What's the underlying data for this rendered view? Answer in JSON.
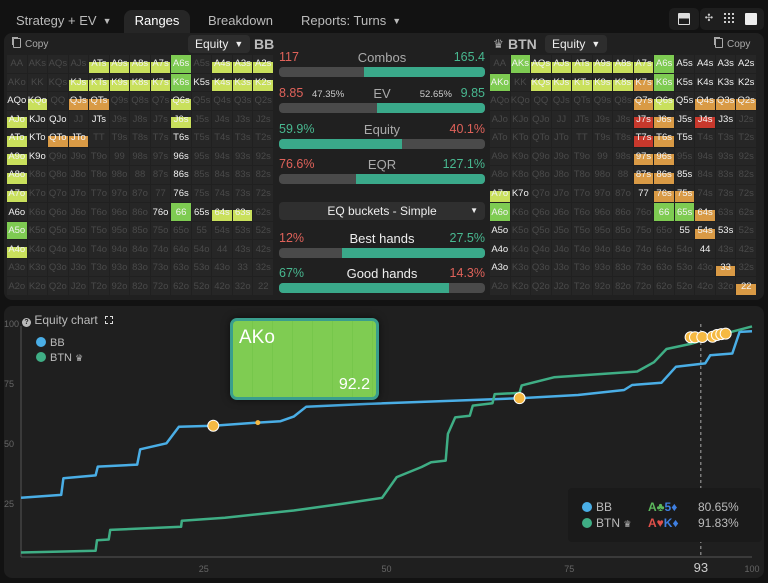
{
  "tabs": [
    {
      "label": "Strategy + EV",
      "dropdown": true,
      "active": false
    },
    {
      "label": "Ranges",
      "active": true
    },
    {
      "label": "Breakdown",
      "active": false
    },
    {
      "label": "Reports: Turns",
      "dropdown": true,
      "active": false
    }
  ],
  "toolbar_icons": [
    "layout-split-icon",
    "compact-icon",
    "grid-icon",
    "square-icon"
  ],
  "hands": [
    [
      "AA",
      "AKs",
      "AQs",
      "AJs",
      "ATs",
      "A9s",
      "A8s",
      "A7s",
      "A6s",
      "A5s",
      "A4s",
      "A3s",
      "A2s"
    ],
    [
      "AKo",
      "KK",
      "KQs",
      "KJs",
      "KTs",
      "K9s",
      "K8s",
      "K7s",
      "K6s",
      "K5s",
      "K4s",
      "K3s",
      "K2s"
    ],
    [
      "AQo",
      "KQo",
      "QQ",
      "QJs",
      "QTs",
      "Q9s",
      "Q8s",
      "Q7s",
      "Q6s",
      "Q5s",
      "Q4s",
      "Q3s",
      "Q2s"
    ],
    [
      "AJo",
      "KJo",
      "QJo",
      "JJ",
      "JTs",
      "J9s",
      "J8s",
      "J7s",
      "J6s",
      "J5s",
      "J4s",
      "J3s",
      "J2s"
    ],
    [
      "ATo",
      "KTo",
      "QTo",
      "JTo",
      "TT",
      "T9s",
      "T8s",
      "T7s",
      "T6s",
      "T5s",
      "T4s",
      "T3s",
      "T2s"
    ],
    [
      "A9o",
      "K9o",
      "Q9o",
      "J9o",
      "T9o",
      "99",
      "98s",
      "97s",
      "96s",
      "95s",
      "94s",
      "93s",
      "92s"
    ],
    [
      "A8o",
      "K8o",
      "Q8o",
      "J8o",
      "T8o",
      "98o",
      "88",
      "87s",
      "86s",
      "85s",
      "84s",
      "83s",
      "82s"
    ],
    [
      "A7o",
      "K7o",
      "Q7o",
      "J7o",
      "T7o",
      "97o",
      "87o",
      "77",
      "76s",
      "75s",
      "74s",
      "73s",
      "72s"
    ],
    [
      "A6o",
      "K6o",
      "Q6o",
      "J6o",
      "T6o",
      "96o",
      "86o",
      "76o",
      "66",
      "65s",
      "64s",
      "63s",
      "62s"
    ],
    [
      "A5o",
      "K5o",
      "Q5o",
      "J5o",
      "T5o",
      "95o",
      "85o",
      "75o",
      "65o",
      "55",
      "54s",
      "53s",
      "52s"
    ],
    [
      "A4o",
      "K4o",
      "Q4o",
      "J4o",
      "T4o",
      "94o",
      "84o",
      "74o",
      "64o",
      "54o",
      "44",
      "43s",
      "42s"
    ],
    [
      "A3o",
      "K3o",
      "Q3o",
      "J3o",
      "T3o",
      "93o",
      "83o",
      "73o",
      "63o",
      "53o",
      "43o",
      "33",
      "32s"
    ],
    [
      "A2o",
      "K2o",
      "Q2o",
      "J2o",
      "T2o",
      "92o",
      "82o",
      "72o",
      "62o",
      "52o",
      "42o",
      "32o",
      "22"
    ]
  ],
  "cell_colors": {
    "g": "#7ecb52",
    "y": "#c9e05c",
    "o": "#d99a45",
    "r": "#c8382c"
  },
  "bb": {
    "copy_label": "Copy",
    "metric": "Equity",
    "name": "BB",
    "states": [
      "....yyyyg.yyy",
      "...yyyyygwyyy",
      "wy.oo...y....",
      "yww.w...y....",
      "ywoo....w....",
      "yw......w....",
      "y.......w....",
      "y.......w....",
      "w......wgwyy.",
      "g............",
      "y............",
      ".............",
      "............."
    ]
  },
  "btn": {
    "copy_label": "Copy",
    "metric": "Equity",
    "name": "BTN",
    "crown": "crown-icon",
    "states": [
      ".gyyyyyygwwww",
      "g.yyyyyogwwww",
      ".......oywooo",
      ".......rowrw.",
      ".......row...",
      ".......oo....",
      ".......oow...",
      "yw.....woo...",
      "g.......ggo..",
      "w........wow.",
      "w.........w..",
      "w..........o.",
      "............o"
    ],
    "hover": {
      "hand": "AKo",
      "value": "92.2"
    }
  },
  "stats": {
    "combos": {
      "label": "Combos",
      "left": "117",
      "right": "165.4",
      "left_share": 41.4
    },
    "ev": {
      "label": "EV",
      "left": "8.85",
      "left_pct": "47.35%",
      "right_pct": "52.65%",
      "right": "9.85",
      "left_share": 47.35
    },
    "equity": {
      "label": "Equity",
      "left": "59.9%",
      "right": "40.1%",
      "left_share": 59.9
    },
    "eqr": {
      "label": "EQR",
      "left": "76.6%",
      "right": "127.1%",
      "left_share": 37.6
    },
    "bucket_select": "EQ buckets - Simple",
    "best": {
      "label": "Best hands",
      "left": "12%",
      "right": "27.5%",
      "left_share": 30.4
    },
    "good": {
      "label": "Good hands",
      "left": "67%",
      "right": "14.3%",
      "left_share": 82.4
    }
  },
  "chart_panel": {
    "title": "Equity chart",
    "help_icon": "help-icon",
    "expand_icon": "expand-icon"
  },
  "chart_data": {
    "type": "line",
    "title": "Equity chart",
    "xlim": [
      0,
      100
    ],
    "ylim": [
      0,
      100
    ],
    "x_ticks": [
      "25",
      "50",
      "75",
      "100"
    ],
    "y_ticks": [
      "100",
      "75",
      "50",
      "25"
    ],
    "grid": false,
    "legend": "top-left",
    "marker_line": {
      "x": 93,
      "label": "93"
    },
    "series": [
      {
        "name": "BB",
        "color": "#4aaee6",
        "points": [
          [
            0,
            27.6
          ],
          [
            5.5,
            28.8
          ],
          [
            5.8,
            35.7
          ],
          [
            10.2,
            36.9
          ],
          [
            10.5,
            40.6
          ],
          [
            15.9,
            41.4
          ],
          [
            16.3,
            47.8
          ],
          [
            19.9,
            50.3
          ],
          [
            21.6,
            57.2
          ],
          [
            26.3,
            57.6
          ],
          [
            32.4,
            58.9
          ],
          [
            35.5,
            59.5
          ],
          [
            37.3,
            61.4
          ],
          [
            39,
            65.5
          ],
          [
            47.4,
            66.7
          ],
          [
            64.1,
            68.6
          ],
          [
            68.2,
            69.1
          ],
          [
            76.2,
            70.4
          ],
          [
            82.5,
            72.5
          ],
          [
            83.6,
            74.6
          ],
          [
            87.6,
            75.5
          ],
          [
            89.6,
            82.2
          ],
          [
            93.6,
            83.6
          ],
          [
            94.3,
            87
          ],
          [
            97.3,
            87.7
          ],
          [
            98.3,
            96.7
          ],
          [
            100,
            97
          ]
        ]
      },
      {
        "name": "BTN",
        "color": "#3fae85",
        "points": [
          [
            0,
            4.8
          ],
          [
            10.2,
            5.5
          ],
          [
            10.4,
            9.9
          ],
          [
            12,
            10.2
          ],
          [
            12.2,
            14.2
          ],
          [
            21.9,
            15.5
          ],
          [
            22,
            18
          ],
          [
            27.9,
            19.3
          ],
          [
            37.3,
            22.3
          ],
          [
            44,
            25.1
          ],
          [
            49.4,
            27.6
          ],
          [
            51.4,
            36.2
          ],
          [
            54.8,
            40.4
          ],
          [
            56.1,
            42.4
          ],
          [
            58.1,
            43.1
          ],
          [
            58.4,
            54.2
          ],
          [
            59.4,
            61.1
          ],
          [
            61.4,
            61.8
          ],
          [
            61.8,
            66
          ],
          [
            64.5,
            67
          ],
          [
            64.8,
            70.8
          ],
          [
            68.2,
            71.3
          ],
          [
            68.5,
            74.4
          ],
          [
            72.9,
            77.8
          ],
          [
            84.3,
            80.2
          ],
          [
            86.6,
            84.1
          ],
          [
            88.3,
            89.6
          ],
          [
            91.6,
            91.7
          ],
          [
            96.3,
            96
          ],
          [
            100,
            99
          ]
        ]
      }
    ],
    "highlight_points": [
      [
        26.3,
        57.6,
        "large"
      ],
      [
        32.4,
        58.9,
        "small"
      ],
      [
        68.2,
        69.1,
        "large"
      ],
      [
        91.6,
        94.5,
        "large"
      ],
      [
        92.2,
        94.5,
        "large"
      ],
      [
        93.2,
        94.6,
        "large"
      ],
      [
        94.6,
        94.7,
        "large"
      ],
      [
        95.2,
        95.4,
        "large"
      ],
      [
        95.8,
        95.8,
        "large"
      ],
      [
        96.4,
        96,
        "large"
      ]
    ],
    "highlight_color": "#f5b942",
    "tooltip": {
      "rows": [
        {
          "name": "BB",
          "color": "#4aaee6",
          "cards": [
            {
              "rank": "A",
              "suit": "♣",
              "color": "#5cb85c"
            },
            {
              "rank": "5",
              "suit": "♦",
              "color": "#3f7fe0"
            }
          ],
          "value": "80.65%"
        },
        {
          "name": "BTN",
          "color": "#3fae85",
          "crown": true,
          "cards": [
            {
              "rank": "A",
              "suit": "♥",
              "color": "#e0504a"
            },
            {
              "rank": "K",
              "suit": "♦",
              "color": "#3f7fe0"
            }
          ],
          "value": "91.83%"
        }
      ]
    }
  }
}
